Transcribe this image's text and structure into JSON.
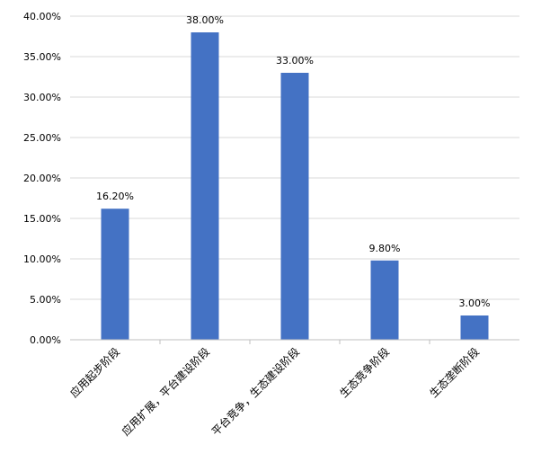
{
  "chart_data": {
    "type": "bar",
    "categories": [
      "应用起步阶段",
      "应用扩展，平台建设阶段",
      "平台竞争，生态建设阶段",
      "生态竞争阶段",
      "生态垄断阶段"
    ],
    "values": [
      16.2,
      38.0,
      33.0,
      9.8,
      3.0
    ],
    "data_labels": [
      "16.20%",
      "38.00%",
      "33.00%",
      "9.80%",
      "3.00%"
    ],
    "y_ticks": [
      "0.00%",
      "5.00%",
      "10.00%",
      "15.00%",
      "20.00%",
      "25.00%",
      "30.00%",
      "35.00%",
      "40.00%"
    ],
    "ylim": [
      0,
      40
    ],
    "y_step": 5,
    "grid": true,
    "legend": "none",
    "title": "",
    "xlabel": "",
    "ylabel": "",
    "colors": {
      "bar": "#4472C4",
      "grid": "#D9D9D9",
      "axis": "#BFBFBF",
      "text": "#000000"
    }
  }
}
